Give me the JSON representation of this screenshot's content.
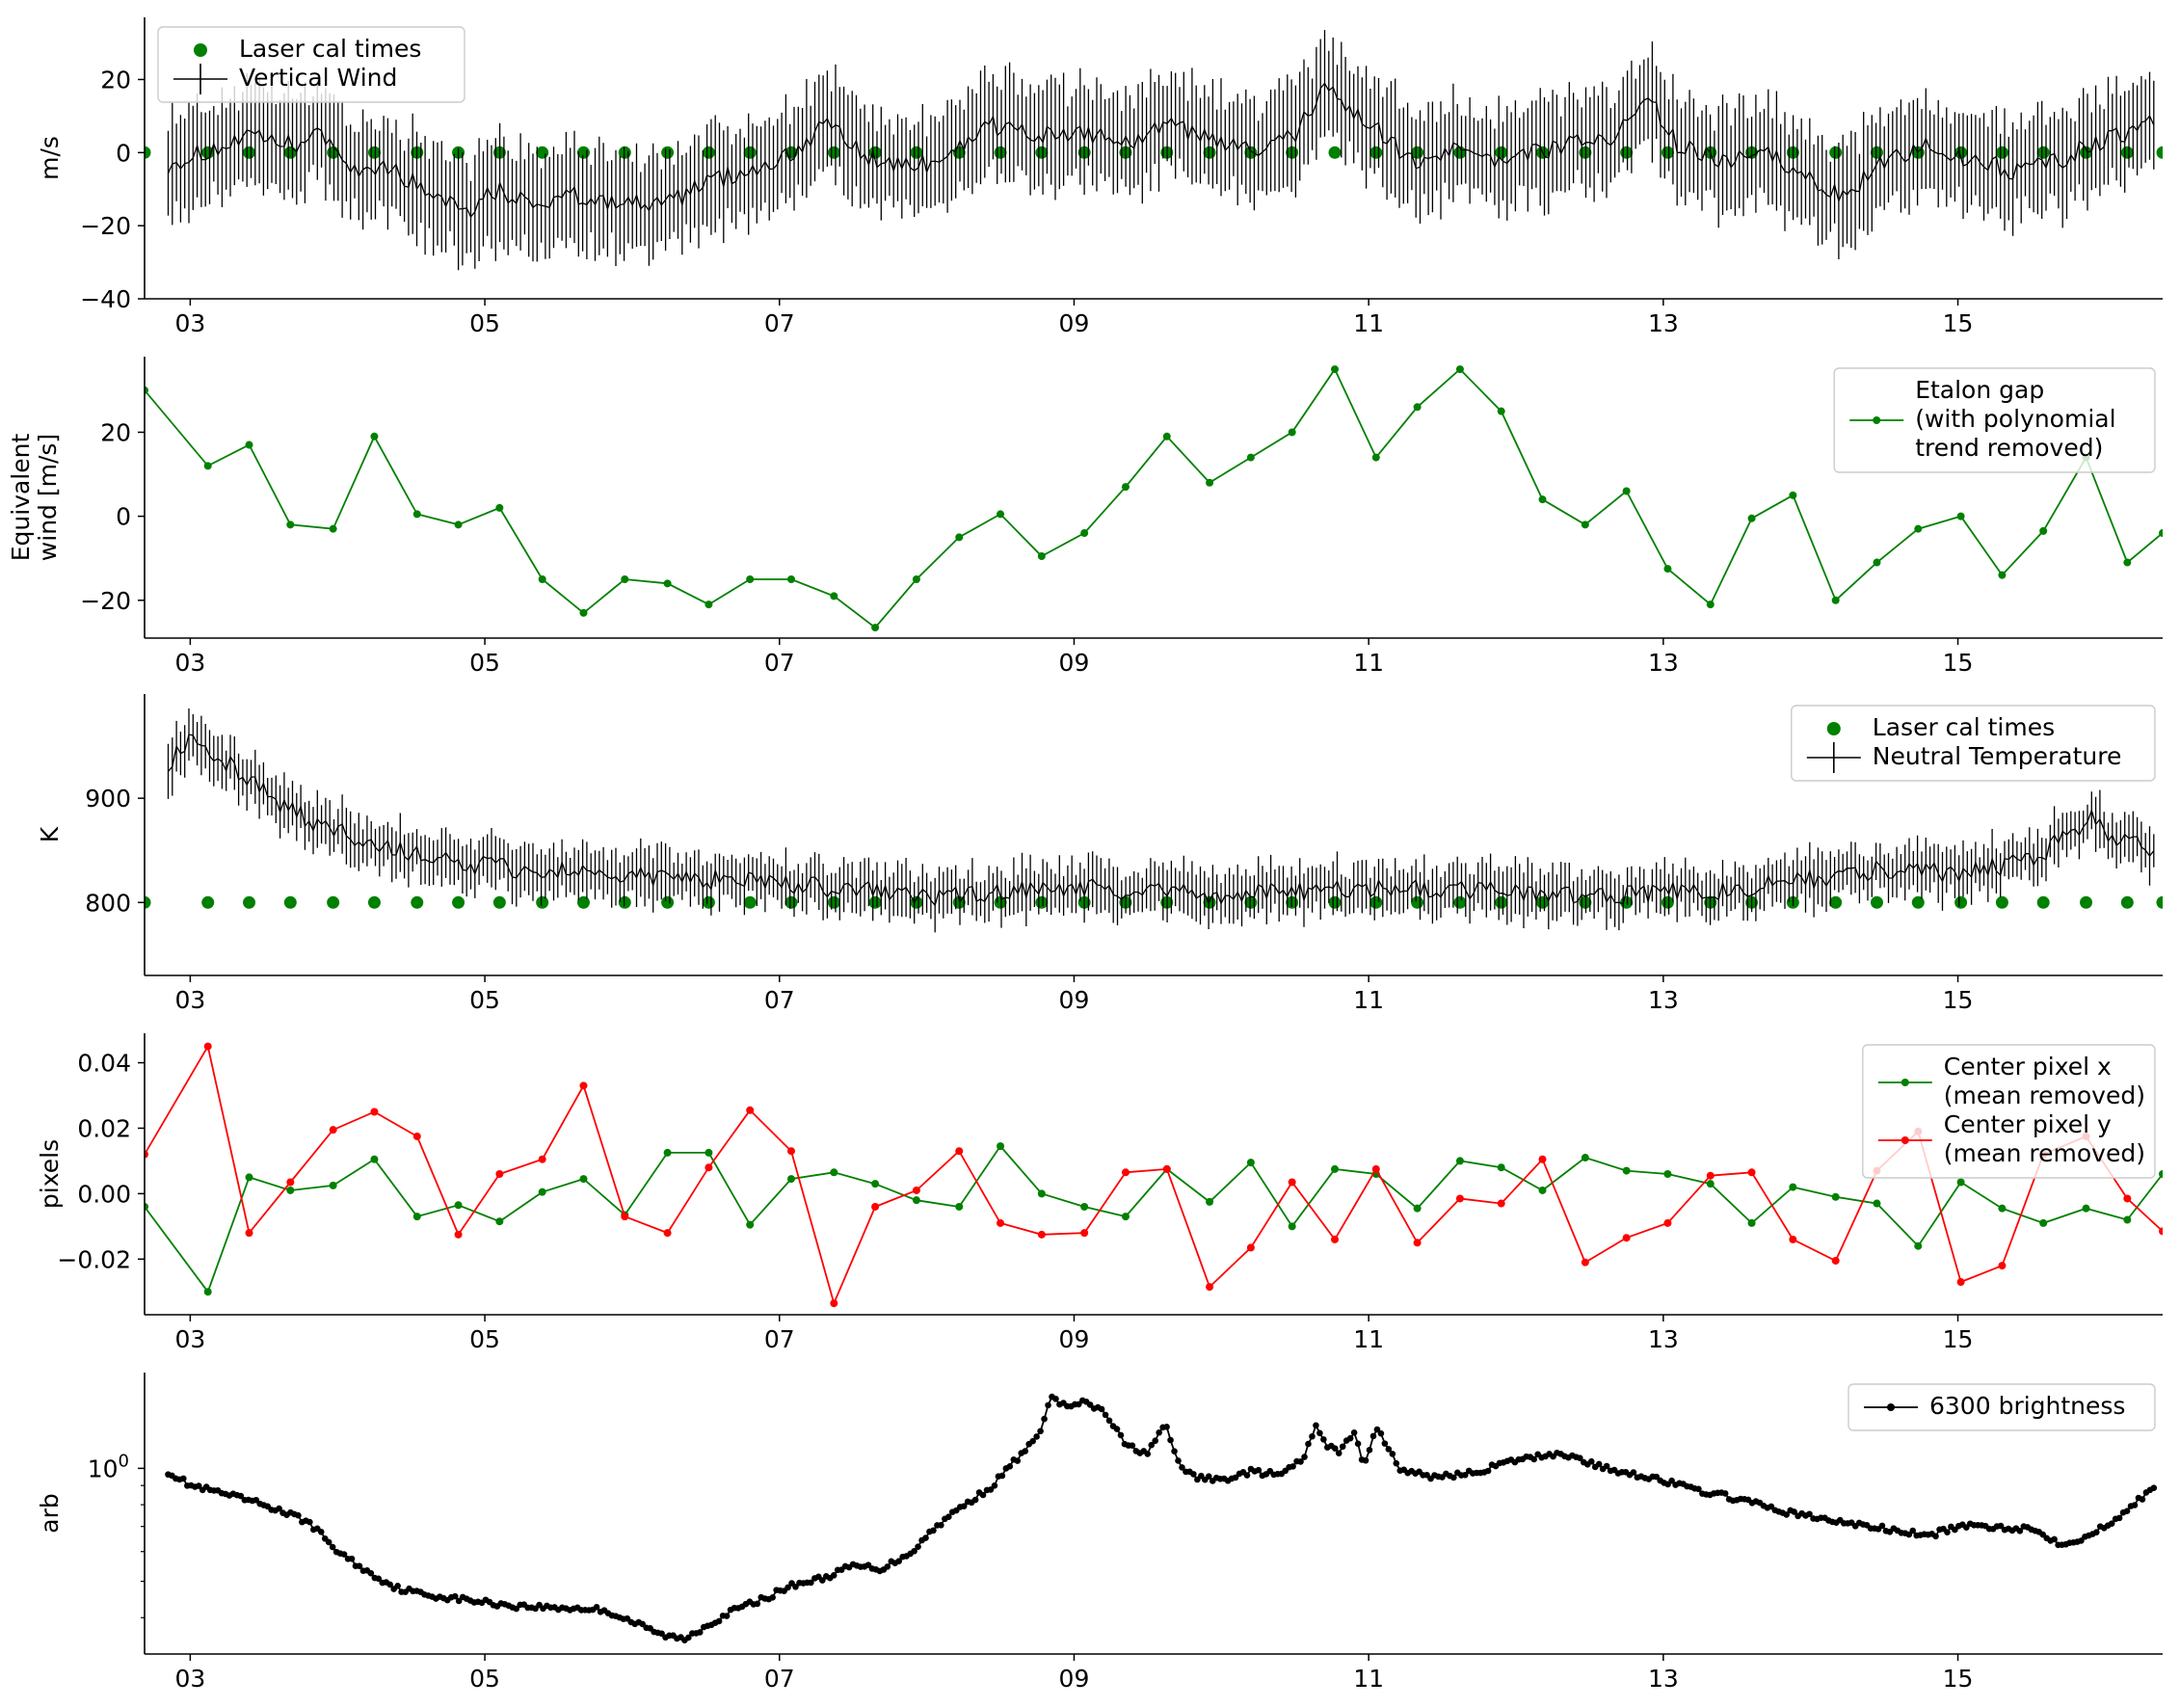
{
  "x_ticks": [
    "03",
    "05",
    "07",
    "09",
    "11",
    "13",
    "15"
  ],
  "colors": {
    "green": "#008000",
    "red": "#ff0000",
    "black": "#000000"
  },
  "chart_data": [
    {
      "type": "line",
      "title": "",
      "ylabel": [
        "m/s"
      ],
      "xlabel": "",
      "xlim": [
        2.69,
        16.39
      ],
      "ylim": [
        -40,
        37
      ],
      "yticks": [
        -40,
        -20,
        0,
        20
      ],
      "ytick_labels": [
        "−40",
        "−20",
        "0",
        "20"
      ],
      "log_y": false,
      "legend": {
        "position": "top-left",
        "entries": [
          {
            "label": "Laser cal times",
            "marker": "dot",
            "color": "#008000"
          },
          {
            "label": "Vertical Wind",
            "marker": "errorbar",
            "color": "#000000"
          }
        ]
      },
      "series": [
        {
          "name": "Laser cal times",
          "kind": "points",
          "color": "#008000",
          "x": [
            2.69,
            3.12,
            3.4,
            3.68,
            3.97,
            4.25,
            4.54,
            4.82,
            5.1,
            5.39,
            5.67,
            5.95,
            6.24,
            6.52,
            6.8,
            7.08,
            7.37,
            7.65,
            7.93,
            8.22,
            8.5,
            8.78,
            9.07,
            9.35,
            9.63,
            9.92,
            10.2,
            10.48,
            10.77,
            11.05,
            11.33,
            11.62,
            11.9,
            12.18,
            12.47,
            12.75,
            13.03,
            13.32,
            13.6,
            13.88,
            14.17,
            14.45,
            14.73,
            15.02,
            15.3,
            15.58,
            15.87,
            16.15,
            16.39
          ],
          "y": [
            0,
            0,
            0,
            0,
            0,
            0,
            0,
            0,
            0,
            0,
            0,
            0,
            0,
            0,
            0,
            0,
            0,
            0,
            0,
            0,
            0,
            0,
            0,
            0,
            0,
            0,
            0,
            0,
            0,
            0,
            0,
            0,
            0,
            0,
            0,
            0,
            0,
            0,
            0,
            0,
            0,
            0,
            0,
            0,
            0,
            0,
            0,
            0,
            0
          ]
        },
        {
          "name": "Vertical Wind",
          "kind": "errorbar",
          "color": "#000000",
          "x_start": 2.85,
          "x_end": 16.33,
          "count": 480,
          "err": 13,
          "trend_x": [
            2.85,
            3.1,
            3.4,
            3.7,
            3.9,
            4.1,
            4.3,
            4.5,
            4.7,
            4.9,
            5.1,
            5.3,
            5.6,
            5.9,
            6.2,
            6.5,
            6.8,
            7.1,
            7.3,
            7.6,
            7.9,
            8.2,
            8.4,
            8.6,
            8.9,
            9.2,
            9.4,
            9.6,
            9.9,
            10.2,
            10.5,
            10.7,
            10.9,
            11.1,
            11.3,
            11.6,
            11.9,
            12.1,
            12.4,
            12.7,
            12.9,
            13.1,
            13.4,
            13.7,
            14.0,
            14.2,
            14.5,
            14.8,
            15.1,
            15.4,
            15.7,
            16.0,
            16.33
          ],
          "trend_y": [
            -3,
            0,
            4,
            2,
            5,
            -5,
            -3,
            -8,
            -12,
            -15,
            -10,
            -14,
            -12,
            -13,
            -15,
            -8,
            -5,
            0,
            8,
            -2,
            -4,
            0,
            8,
            6,
            4,
            5,
            2,
            8,
            4,
            0,
            5,
            18,
            10,
            5,
            -3,
            2,
            -2,
            0,
            3,
            5,
            15,
            2,
            -3,
            0,
            -8,
            -12,
            -3,
            2,
            -2,
            -5,
            -2,
            4,
            8
          ]
        }
      ]
    },
    {
      "type": "line",
      "title": "",
      "ylabel": [
        "Equivalent",
        "wind [m/s]"
      ],
      "xlabel": "",
      "xlim": [
        2.69,
        16.39
      ],
      "ylim": [
        -29,
        38
      ],
      "yticks": [
        -20,
        0,
        20
      ],
      "ytick_labels": [
        "−20",
        "0",
        "20"
      ],
      "log_y": false,
      "legend": {
        "position": "top-right",
        "entries": [
          {
            "label": [
              "Etalon gap",
              "(with polynomial",
              "trend removed)"
            ],
            "marker": "line-dot",
            "color": "#008000"
          }
        ]
      },
      "series": [
        {
          "name": "Etalon gap",
          "kind": "line-dot",
          "color": "#008000",
          "x": [
            2.69,
            3.12,
            3.4,
            3.68,
            3.97,
            4.25,
            4.54,
            4.82,
            5.1,
            5.39,
            5.67,
            5.95,
            6.24,
            6.52,
            6.8,
            7.08,
            7.37,
            7.65,
            7.93,
            8.22,
            8.5,
            8.78,
            9.07,
            9.35,
            9.63,
            9.92,
            10.2,
            10.48,
            10.77,
            11.05,
            11.33,
            11.62,
            11.9,
            12.18,
            12.47,
            12.75,
            13.03,
            13.32,
            13.6,
            13.88,
            14.17,
            14.45,
            14.73,
            15.02,
            15.3,
            15.58,
            15.87,
            16.15,
            16.39
          ],
          "y": [
            30,
            12,
            17,
            -2,
            -3,
            19,
            0.5,
            -2,
            2,
            -15,
            -23,
            -15,
            -16,
            -21,
            -15,
            -15,
            -19,
            -26.5,
            -15,
            -5,
            0.5,
            -9.5,
            -4,
            7,
            19,
            8,
            14,
            20,
            35,
            14,
            26,
            35,
            25,
            4,
            -2,
            6,
            -12.5,
            -21,
            -0.5,
            5,
            -20,
            -11,
            -3,
            0,
            -14,
            -3.5,
            14,
            -11,
            -4
          ]
        }
      ]
    },
    {
      "type": "line",
      "title": "",
      "ylabel": [
        "K"
      ],
      "xlabel": "",
      "xlim": [
        2.69,
        16.39
      ],
      "ylim": [
        730,
        1000
      ],
      "yticks": [
        800,
        900
      ],
      "ytick_labels": [
        "800",
        "900"
      ],
      "log_y": false,
      "legend": {
        "position": "top-right",
        "entries": [
          {
            "label": "Laser cal times",
            "marker": "dot",
            "color": "#008000"
          },
          {
            "label": "Neutral Temperature",
            "marker": "errorbar",
            "color": "#000000"
          }
        ]
      },
      "series": [
        {
          "name": "Laser cal times",
          "kind": "points",
          "color": "#008000",
          "x": [
            2.69,
            3.12,
            3.4,
            3.68,
            3.97,
            4.25,
            4.54,
            4.82,
            5.1,
            5.39,
            5.67,
            5.95,
            6.24,
            6.52,
            6.8,
            7.08,
            7.37,
            7.65,
            7.93,
            8.22,
            8.5,
            8.78,
            9.07,
            9.35,
            9.63,
            9.92,
            10.2,
            10.48,
            10.77,
            11.05,
            11.33,
            11.62,
            11.9,
            12.18,
            12.47,
            12.75,
            13.03,
            13.32,
            13.6,
            13.88,
            14.17,
            14.45,
            14.73,
            15.02,
            15.3,
            15.58,
            15.87,
            16.15,
            16.39
          ],
          "y": [
            800,
            800,
            800,
            800,
            800,
            800,
            800,
            800,
            800,
            800,
            800,
            800,
            800,
            800,
            800,
            800,
            800,
            800,
            800,
            800,
            800,
            800,
            800,
            800,
            800,
            800,
            800,
            800,
            800,
            800,
            800,
            800,
            800,
            800,
            800,
            800,
            800,
            800,
            800,
            800,
            800,
            800,
            800,
            800,
            800,
            800,
            800,
            800,
            800
          ]
        },
        {
          "name": "Neutral Temperature",
          "kind": "errorbar",
          "color": "#000000",
          "x_start": 2.85,
          "x_end": 16.33,
          "count": 480,
          "err": 22,
          "trend_x": [
            2.85,
            3.0,
            3.2,
            3.5,
            3.8,
            4.1,
            4.4,
            4.7,
            5.0,
            5.5,
            6.0,
            6.5,
            7.0,
            7.5,
            8.0,
            8.5,
            9.0,
            9.5,
            10.0,
            10.5,
            11.0,
            11.5,
            12.0,
            12.5,
            13.0,
            13.5,
            14.0,
            14.5,
            15.0,
            15.5,
            15.9,
            16.1,
            16.33
          ],
          "trend_y": [
            935,
            960,
            940,
            905,
            880,
            865,
            850,
            840,
            835,
            830,
            825,
            822,
            818,
            812,
            805,
            810,
            815,
            810,
            808,
            810,
            815,
            812,
            810,
            805,
            810,
            812,
            822,
            832,
            828,
            840,
            880,
            860,
            848
          ]
        }
      ]
    },
    {
      "type": "line",
      "title": "",
      "ylabel": [
        "pixels"
      ],
      "xlabel": "",
      "xlim": [
        2.69,
        16.39
      ],
      "ylim": [
        -0.037,
        0.049
      ],
      "yticks": [
        -0.02,
        0,
        0.02,
        0.04
      ],
      "ytick_labels": [
        "−0.02",
        "0.00",
        "0.02",
        "0.04"
      ],
      "log_y": false,
      "legend": {
        "position": "top-right",
        "entries": [
          {
            "label": [
              "Center pixel x",
              "(mean removed)"
            ],
            "marker": "line-dot",
            "color": "#008000"
          },
          {
            "label": [
              "Center pixel y",
              "(mean removed)"
            ],
            "marker": "line-dot",
            "color": "#ff0000"
          }
        ]
      },
      "series": [
        {
          "name": "Center pixel x",
          "kind": "line-dot",
          "color": "#008000",
          "x": [
            2.69,
            3.12,
            3.4,
            3.68,
            3.97,
            4.25,
            4.54,
            4.82,
            5.1,
            5.39,
            5.67,
            5.95,
            6.24,
            6.52,
            6.8,
            7.08,
            7.37,
            7.65,
            7.93,
            8.22,
            8.5,
            8.78,
            9.07,
            9.35,
            9.63,
            9.92,
            10.2,
            10.48,
            10.77,
            11.05,
            11.33,
            11.62,
            11.9,
            12.18,
            12.47,
            12.75,
            13.03,
            13.32,
            13.6,
            13.88,
            14.17,
            14.45,
            14.73,
            15.02,
            15.3,
            15.58,
            15.87,
            16.15,
            16.39
          ],
          "y": [
            -0.004,
            -0.03,
            0.005,
            0.001,
            0.0025,
            0.0105,
            -0.007,
            -0.0035,
            -0.0085,
            0.0005,
            0.0045,
            -0.0065,
            0.0125,
            0.0125,
            -0.0095,
            0.0045,
            0.0065,
            0.003,
            -0.002,
            -0.004,
            0.0145,
            0.0,
            -0.004,
            -0.007,
            0.0075,
            -0.0025,
            0.0095,
            -0.01,
            0.0075,
            0.006,
            -0.0045,
            0.01,
            0.008,
            0.001,
            0.011,
            0.007,
            0.006,
            0.003,
            -0.009,
            0.002,
            -0.001,
            -0.003,
            -0.016,
            0.0035,
            -0.0045,
            -0.009,
            -0.0045,
            -0.008,
            0.006
          ]
        },
        {
          "name": "Center pixel y",
          "kind": "line-dot",
          "color": "#ff0000",
          "x": [
            2.69,
            3.12,
            3.4,
            3.68,
            3.97,
            4.25,
            4.54,
            4.82,
            5.1,
            5.39,
            5.67,
            5.95,
            6.24,
            6.52,
            6.8,
            7.08,
            7.37,
            7.65,
            7.93,
            8.22,
            8.5,
            8.78,
            9.07,
            9.35,
            9.63,
            9.92,
            10.2,
            10.48,
            10.77,
            11.05,
            11.33,
            11.62,
            11.9,
            12.18,
            12.47,
            12.75,
            13.03,
            13.32,
            13.6,
            13.88,
            14.17,
            14.45,
            14.73,
            15.02,
            15.3,
            15.58,
            15.87,
            16.15,
            16.39
          ],
          "y": [
            0.012,
            0.045,
            -0.012,
            0.0035,
            0.0195,
            0.025,
            0.0175,
            -0.0125,
            0.006,
            0.0105,
            0.033,
            -0.007,
            -0.012,
            0.008,
            0.0255,
            0.013,
            -0.0335,
            -0.004,
            0.001,
            0.013,
            -0.009,
            -0.0125,
            -0.012,
            0.0065,
            0.0075,
            -0.0285,
            -0.0165,
            0.0035,
            -0.014,
            0.0075,
            -0.015,
            -0.0015,
            -0.003,
            0.0105,
            -0.021,
            -0.0135,
            -0.009,
            0.0055,
            0.0065,
            -0.014,
            -0.0205,
            0.007,
            0.019,
            -0.027,
            -0.022,
            0.012,
            0.0175,
            -0.0015,
            -0.0115
          ]
        }
      ]
    },
    {
      "type": "line",
      "title": "",
      "ylabel": [
        "arb"
      ],
      "xlabel": "",
      "xlim": [
        2.69,
        16.39
      ],
      "ylim": [
        0.32,
        1.8
      ],
      "yticks": [
        1
      ],
      "ytick_labels": [
        "10^0"
      ],
      "log_y": true,
      "legend": {
        "position": "top-right",
        "entries": [
          {
            "label": "6300 brightness",
            "marker": "line-dot",
            "color": "#000000"
          }
        ]
      },
      "series": [
        {
          "name": "6300 brightness",
          "kind": "line-dot-dense",
          "color": "#000000",
          "count": 520,
          "x": [
            2.85,
            3.0,
            3.2,
            3.5,
            3.8,
            4.0,
            4.2,
            4.4,
            4.6,
            4.8,
            5.0,
            5.2,
            5.5,
            5.8,
            6.0,
            6.2,
            6.35,
            6.5,
            6.7,
            6.9,
            7.1,
            7.3,
            7.5,
            7.7,
            7.9,
            8.1,
            8.3,
            8.45,
            8.6,
            8.75,
            8.85,
            8.95,
            9.05,
            9.2,
            9.35,
            9.5,
            9.62,
            9.7,
            9.8,
            10.0,
            10.2,
            10.4,
            10.55,
            10.65,
            10.72,
            10.8,
            10.9,
            10.97,
            11.05,
            11.2,
            11.4,
            11.7,
            12.0,
            12.3,
            12.6,
            12.9,
            13.2,
            13.5,
            13.8,
            14.1,
            14.4,
            14.6,
            14.8,
            15.0,
            15.2,
            15.5,
            15.7,
            15.9,
            16.1,
            16.33
          ],
          "y": [
            0.98,
            0.9,
            0.86,
            0.8,
            0.72,
            0.6,
            0.53,
            0.48,
            0.46,
            0.45,
            0.44,
            0.43,
            0.425,
            0.42,
            0.39,
            0.36,
            0.35,
            0.38,
            0.42,
            0.45,
            0.49,
            0.51,
            0.55,
            0.54,
            0.6,
            0.72,
            0.82,
            0.9,
            1.05,
            1.2,
            1.55,
            1.45,
            1.5,
            1.42,
            1.15,
            1.1,
            1.3,
            1.05,
            0.95,
            0.93,
            0.98,
            0.96,
            1.05,
            1.3,
            1.15,
            1.1,
            1.25,
            1.0,
            1.3,
            1.0,
            0.95,
            0.97,
            1.05,
            1.1,
            1.0,
            0.95,
            0.88,
            0.83,
            0.77,
            0.73,
            0.7,
            0.68,
            0.66,
            0.7,
            0.7,
            0.69,
            0.63,
            0.66,
            0.75,
            0.88
          ]
        }
      ]
    }
  ]
}
